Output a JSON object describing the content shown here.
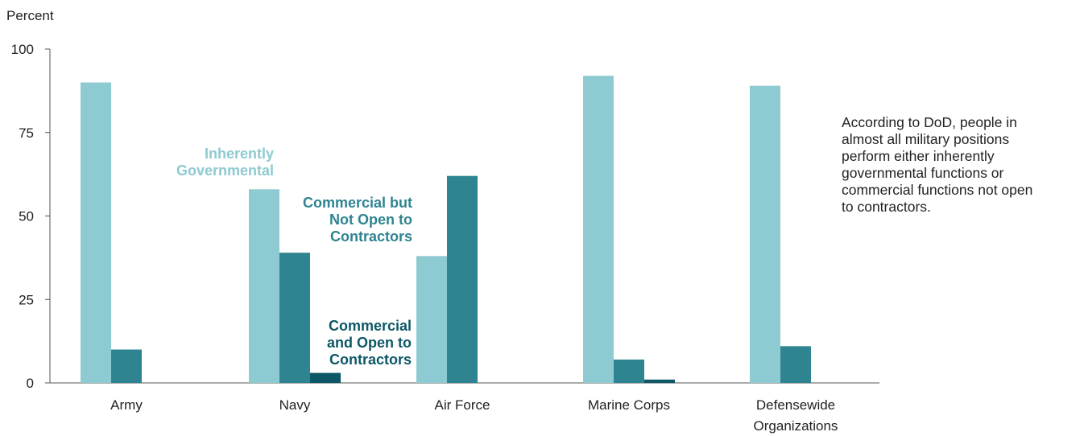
{
  "colors": {
    "inherently_governmental": "#8ecad1",
    "commercial_not_open": "#2e8491",
    "commercial_open": "#0d5766",
    "axis": "#555555"
  },
  "chart_data": {
    "type": "bar",
    "ylabel": "Percent",
    "xlabel": "",
    "ylim": [
      0,
      100
    ],
    "yticks": [
      0,
      25,
      50,
      75,
      100
    ],
    "grid": false,
    "categories": [
      [
        "Army"
      ],
      [
        "Navy"
      ],
      [
        "Air Force"
      ],
      [
        "Marine Corps"
      ],
      [
        "Defensewide",
        "Organizations"
      ]
    ],
    "series": [
      {
        "name": "Inherently Governmental",
        "label_lines": [
          "Inherently",
          "Governmental"
        ],
        "color": "#8ecad1",
        "values": [
          90,
          58,
          38,
          92,
          89
        ]
      },
      {
        "name": "Commercial but Not Open to Contractors",
        "label_lines": [
          "Commercial but",
          "Not Open to",
          "Contractors"
        ],
        "color": "#2e8491",
        "values": [
          10,
          39,
          62,
          7,
          11
        ]
      },
      {
        "name": "Commercial and Open to Contractors",
        "label_lines": [
          "Commercial",
          "and Open to",
          "Contractors"
        ],
        "color": "#0d5766",
        "values": [
          0,
          3,
          0,
          1,
          0
        ]
      }
    ]
  },
  "note_lines": [
    "According to DoD, people in",
    "almost all military positions",
    "perform either inherently",
    "governmental functions or",
    "commercial functions not open",
    "to contractors."
  ]
}
